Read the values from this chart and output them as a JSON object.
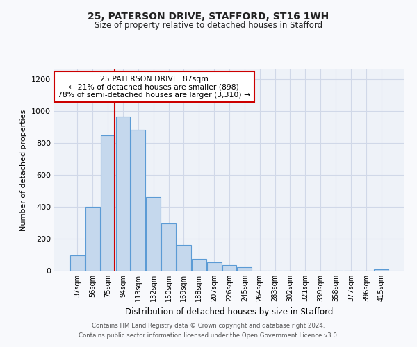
{
  "title_line1": "25, PATERSON DRIVE, STAFFORD, ST16 1WH",
  "title_line2": "Size of property relative to detached houses in Stafford",
  "xlabel": "Distribution of detached houses by size in Stafford",
  "ylabel": "Number of detached properties",
  "bar_labels": [
    "37sqm",
    "56sqm",
    "75sqm",
    "94sqm",
    "113sqm",
    "132sqm",
    "150sqm",
    "169sqm",
    "188sqm",
    "207sqm",
    "226sqm",
    "245sqm",
    "264sqm",
    "283sqm",
    "302sqm",
    "321sqm",
    "339sqm",
    "358sqm",
    "377sqm",
    "396sqm",
    "415sqm"
  ],
  "bar_values": [
    95,
    400,
    848,
    965,
    880,
    460,
    295,
    160,
    72,
    52,
    35,
    20,
    0,
    0,
    0,
    0,
    0,
    0,
    0,
    0,
    10
  ],
  "bar_color": "#c5d8ed",
  "bar_edgecolor": "#5b9bd5",
  "annotation_title": "25 PATERSON DRIVE: 87sqm",
  "annotation_line1": "← 21% of detached houses are smaller (898)",
  "annotation_line2": "78% of semi-detached houses are larger (3,310) →",
  "annotation_box_color": "#ffffff",
  "annotation_box_edgecolor": "#cc0000",
  "vline_color": "#cc0000",
  "ylim": [
    0,
    1260
  ],
  "yticks": [
    0,
    200,
    400,
    600,
    800,
    1000,
    1200
  ],
  "grid_color": "#d0d8e8",
  "background_color": "#eef2f8",
  "fig_background_color": "#f8f9fc",
  "footer_line1": "Contains HM Land Registry data © Crown copyright and database right 2024.",
  "footer_line2": "Contains public sector information licensed under the Open Government Licence v3.0."
}
